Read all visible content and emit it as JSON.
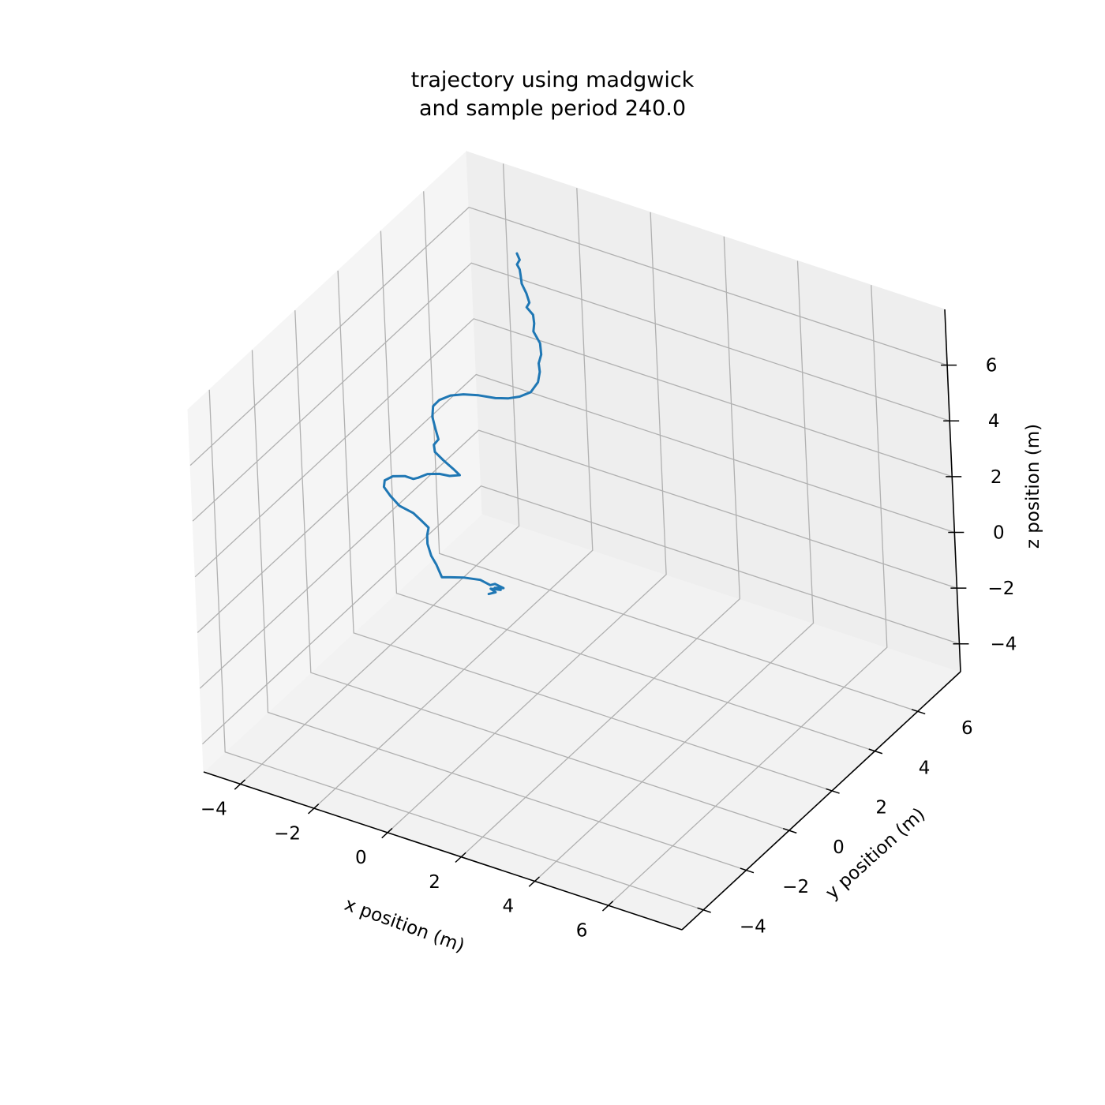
{
  "chart_data": {
    "type": "line",
    "projection": "3d",
    "title_lines": [
      "trajectory using madgwick",
      "and sample period 240.0"
    ],
    "xlabel": "x position (m)",
    "ylabel": "y position (m)",
    "zlabel": "z position (m)",
    "xticks": [
      -4,
      -2,
      0,
      2,
      4,
      6
    ],
    "yticks": [
      -4,
      -2,
      0,
      2,
      4,
      6
    ],
    "zticks": [
      -4,
      -2,
      0,
      2,
      4,
      6
    ],
    "xlim": [
      -5,
      8
    ],
    "ylim": [
      -5,
      8
    ],
    "zlim": [
      -5,
      8
    ],
    "grid": true,
    "series": [
      {
        "color": "#1f77b4",
        "points": [
          [
            0.0,
            0.0,
            0.0
          ],
          [
            0.1,
            0.15,
            0.0
          ],
          [
            0.0,
            0.1,
            0.12
          ],
          [
            0.15,
            0.3,
            0.0
          ],
          [
            0.05,
            0.2,
            0.1
          ],
          [
            0.2,
            0.35,
            0.05
          ],
          [
            0.0,
            0.3,
            0.15
          ],
          [
            -0.1,
            0.25,
            0.1
          ],
          [
            -0.4,
            0.3,
            0.12
          ],
          [
            -0.8,
            0.2,
            0.1
          ],
          [
            -1.1,
            0.1,
            0.05
          ],
          [
            -1.3,
            0.05,
            0.0
          ],
          [
            -1.5,
            0.15,
            0.3
          ],
          [
            -1.6,
            0.1,
            0.6
          ],
          [
            -1.75,
            0.2,
            0.9
          ],
          [
            -1.75,
            0.2,
            1.2
          ],
          [
            -1.7,
            0.2,
            1.5
          ],
          [
            -1.9,
            0.25,
            1.6
          ],
          [
            -2.2,
            0.35,
            1.7
          ],
          [
            -2.6,
            0.4,
            1.75
          ],
          [
            -2.9,
            0.5,
            1.9
          ],
          [
            -3.1,
            0.55,
            2.1
          ],
          [
            -3.1,
            0.6,
            2.3
          ],
          [
            -2.9,
            0.65,
            2.5
          ],
          [
            -2.6,
            0.7,
            2.6
          ],
          [
            -2.4,
            0.75,
            2.55
          ],
          [
            -2.3,
            0.8,
            2.6
          ],
          [
            -2.1,
            0.9,
            2.75
          ],
          [
            -1.8,
            0.95,
            2.85
          ],
          [
            -1.55,
            1.0,
            2.85
          ],
          [
            -1.3,
            1.05,
            2.95
          ],
          [
            -1.5,
            1.1,
            3.05
          ],
          [
            -1.8,
            1.15,
            3.2
          ],
          [
            -2.05,
            1.2,
            3.35
          ],
          [
            -2.1,
            1.25,
            3.55
          ],
          [
            -2.0,
            1.3,
            3.75
          ],
          [
            -2.1,
            1.35,
            4.05
          ],
          [
            -2.2,
            1.4,
            4.4
          ],
          [
            -2.2,
            1.45,
            4.75
          ],
          [
            -2.05,
            1.5,
            5.0
          ],
          [
            -1.8,
            1.6,
            5.2
          ],
          [
            -1.5,
            1.7,
            5.3
          ],
          [
            -1.15,
            1.8,
            5.35
          ],
          [
            -0.75,
            1.9,
            5.35
          ],
          [
            -0.45,
            2.0,
            5.4
          ],
          [
            -0.2,
            2.1,
            5.5
          ],
          [
            0.05,
            2.2,
            5.7
          ],
          [
            0.2,
            2.3,
            6.05
          ],
          [
            0.2,
            2.4,
            6.35
          ],
          [
            0.15,
            2.45,
            6.6
          ],
          [
            0.2,
            2.5,
            6.9
          ],
          [
            0.15,
            2.55,
            7.25
          ],
          [
            -0.05,
            2.6,
            7.55
          ],
          [
            -0.05,
            2.65,
            7.8
          ],
          [
            -0.1,
            2.7,
            8.05
          ],
          [
            -0.3,
            2.75,
            8.2
          ],
          [
            -0.25,
            2.8,
            8.35
          ],
          [
            -0.35,
            2.85,
            8.6
          ],
          [
            -0.5,
            2.9,
            8.85
          ],
          [
            -0.55,
            2.95,
            9.1
          ],
          [
            -0.6,
            3.0,
            9.25
          ],
          [
            -0.7,
            3.05,
            9.35
          ],
          [
            -0.65,
            3.1,
            9.5
          ],
          [
            -0.75,
            3.15,
            9.65
          ]
        ]
      }
    ]
  }
}
